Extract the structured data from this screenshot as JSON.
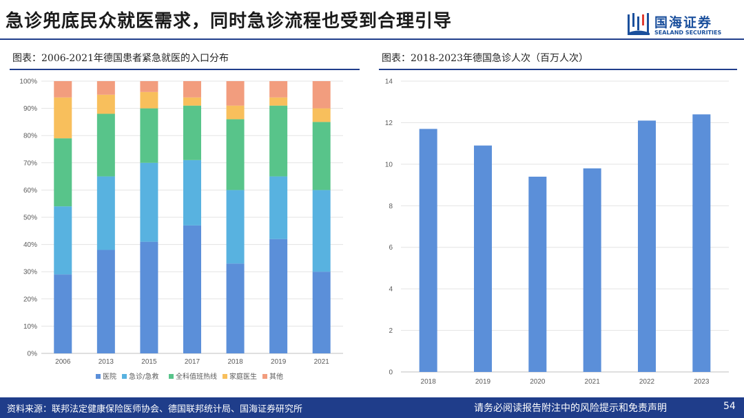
{
  "header": {
    "title": "急诊兜底民众就医需求，同时急诊流程也受到合理引导",
    "logo": {
      "cn": "国海证券",
      "en": "SEALAND SECURITIES",
      "brand_color": "#1a4f9c"
    }
  },
  "footer": {
    "source": "资料来源：联邦法定健康保险医师协会、德国联邦统计局、国海证券研究所",
    "disclaimer": "请务必阅读报告附注中的风险提示和免责声明",
    "page": "54"
  },
  "chart_data": [
    {
      "type": "bar",
      "stacked": true,
      "title": "图表：2006-2021年德国患者紧急就医的入口分布",
      "categories": [
        "2006",
        "2013",
        "2015",
        "2017",
        "2018",
        "2019",
        "2021"
      ],
      "series": [
        {
          "name": "医院",
          "color": "#5b8fd9",
          "values": [
            29,
            38,
            41,
            47,
            33,
            42,
            30
          ]
        },
        {
          "name": "急诊/急救",
          "color": "#58b2e0",
          "values": [
            25,
            27,
            29,
            24,
            27,
            23,
            30
          ]
        },
        {
          "name": "全科值班热线",
          "color": "#58c48a",
          "values": [
            25,
            23,
            20,
            20,
            26,
            26,
            25
          ]
        },
        {
          "name": "家庭医生",
          "color": "#f8bf5c",
          "values": [
            15,
            7,
            6,
            3,
            5,
            3,
            5
          ]
        },
        {
          "name": "其他",
          "color": "#f29d7e",
          "values": [
            6,
            5,
            4,
            6,
            9,
            6,
            10
          ]
        }
      ],
      "yticks": [
        "0%",
        "10%",
        "20%",
        "30%",
        "40%",
        "50%",
        "60%",
        "70%",
        "80%",
        "90%",
        "100%"
      ],
      "ylim": [
        0,
        100
      ],
      "grid": true,
      "legend": "bottom"
    },
    {
      "type": "bar",
      "title": "图表：2018-2023年德国急诊人次（百万人次）",
      "categories": [
        "2018",
        "2019",
        "2020",
        "2021",
        "2022",
        "2023"
      ],
      "values": [
        11.7,
        10.9,
        9.4,
        9.8,
        12.1,
        12.4
      ],
      "color": "#5b8fd9",
      "yticks": [
        "0",
        "2",
        "4",
        "6",
        "8",
        "10",
        "12",
        "14"
      ],
      "ylim": [
        0,
        14
      ],
      "grid": true
    }
  ]
}
